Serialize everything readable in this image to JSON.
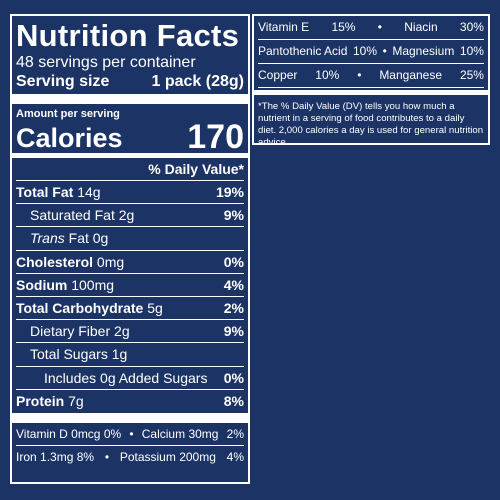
{
  "label": {
    "title": "Nutrition Facts",
    "servings": "48 servings per container",
    "serving_size_label": "Serving size",
    "serving_size_value": "1 pack (28g)",
    "amount_per_serving": "Amount per serving",
    "calories_label": "Calories",
    "calories_value": "170",
    "dv_header": "% Daily Value*",
    "nutrients": [
      {
        "name": "Total Fat",
        "amount": "14g",
        "dv": "19%"
      },
      {
        "name": "Saturated Fat",
        "amount": "2g",
        "dv": "9%"
      },
      {
        "name": "Trans",
        "name_suffix": "Fat",
        "amount": "0g",
        "dv": ""
      },
      {
        "name": "Cholesterol",
        "amount": "0mg",
        "dv": "0%"
      },
      {
        "name": "Sodium",
        "amount": "100mg",
        "dv": "4%"
      },
      {
        "name": "Total Carbohydrate",
        "amount": "5g",
        "dv": "2%"
      },
      {
        "name": "Dietary Fiber",
        "amount": "2g",
        "dv": "9%"
      },
      {
        "name": "Total Sugars",
        "amount": "1g",
        "dv": ""
      },
      {
        "name": "Includes 0g Added Sugars",
        "amount": "",
        "dv": "0%"
      },
      {
        "name": "Protein",
        "amount": "7g",
        "dv": "8%"
      }
    ],
    "vitamins_left": [
      {
        "a_name": "Vitamin D",
        "a_amt": "0mcg",
        "a_dv": "0%",
        "b_name": "Calcium",
        "b_amt": "30mg",
        "b_dv": "2%"
      },
      {
        "a_name": "Iron",
        "a_amt": "1.3mg",
        "a_dv": "8%",
        "b_name": "Potassium",
        "b_amt": "200mg",
        "b_dv": "4%"
      }
    ],
    "vitamins_right": [
      {
        "a_name": "Vitamin E",
        "a_dv": "15%",
        "b_name": "Niacin",
        "b_dv": "30%"
      },
      {
        "a_name": "Pantothenic Acid",
        "a_dv": "10%",
        "b_name": "Magnesium",
        "b_dv": "10%"
      },
      {
        "a_name": "Copper",
        "a_dv": "10%",
        "b_name": "Manganese",
        "b_dv": "25%"
      }
    ],
    "bullet": "•",
    "footnote": "*The % Daily Value (DV) tells you how much a nutrient in a serving of food contributes to a daily diet. 2,000 calories a day is used for general nutrition advice."
  },
  "colors": {
    "background": "#1c3366",
    "text": "#ffffff"
  }
}
